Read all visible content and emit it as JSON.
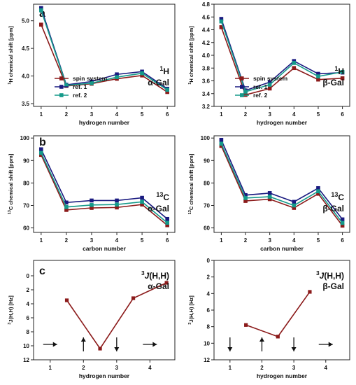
{
  "chart_data": [
    {
      "id": "a-alpha",
      "type": "line",
      "panel_label": "a",
      "xlabel": "hydrogen number",
      "ylabel": "1H chemical shift [ppm]",
      "ylim": [
        5.3,
        3.45
      ],
      "inverted": true,
      "yticks": [
        "3.5",
        "4.0",
        "4.5",
        "5.0"
      ],
      "xticks": [
        "1",
        "2",
        "3",
        "4",
        "5",
        "6"
      ],
      "x": [
        1,
        2,
        3,
        4,
        5,
        6
      ],
      "nucleus": "1H",
      "sugar": "α-Gal",
      "legend_location": "lower-left",
      "series": [
        {
          "name": "spin system",
          "color": "#8b1a1a",
          "values": [
            4.93,
            3.82,
            3.86,
            3.95,
            4.01,
            3.71
          ]
        },
        {
          "name": "ref. 1",
          "color": "#1a1a80",
          "values": [
            5.23,
            3.84,
            3.9,
            4.03,
            4.08,
            3.77
          ]
        },
        {
          "name": "ref. 2",
          "color": "#159a8a",
          "values": [
            5.19,
            3.83,
            3.87,
            3.98,
            4.05,
            3.75
          ]
        }
      ]
    },
    {
      "id": "a-beta",
      "type": "line",
      "xlabel": "hydrogen number",
      "ylabel": "1H chemical shift [ppm]",
      "ylim": [
        4.8,
        3.2
      ],
      "inverted": true,
      "yticks": [
        "3.2",
        "3.4",
        "3.6",
        "3.8",
        "4.0",
        "4.2",
        "4.4",
        "4.6",
        "4.8"
      ],
      "xticks": [
        "1",
        "2",
        "3",
        "4",
        "5",
        "6"
      ],
      "x": [
        1,
        2,
        3,
        4,
        5,
        6
      ],
      "nucleus": "1H",
      "sugar": "β-Gal",
      "legend_location": "lower-left",
      "series": [
        {
          "name": "spin system",
          "color": "#8b1a1a",
          "values": [
            4.44,
            3.38,
            3.48,
            3.8,
            3.62,
            3.64
          ]
        },
        {
          "name": "ref. 1",
          "color": "#1a1a80",
          "values": [
            4.57,
            3.45,
            3.58,
            3.91,
            3.71,
            3.73
          ]
        },
        {
          "name": "ref. 2",
          "color": "#159a8a",
          "values": [
            4.53,
            3.43,
            3.54,
            3.88,
            3.67,
            3.74
          ]
        }
      ]
    },
    {
      "id": "b-alpha",
      "type": "line",
      "panel_label": "b",
      "xlabel": "carbon number",
      "ylabel": "13C chemical shift [ppm]",
      "ylim": [
        101,
        58
      ],
      "inverted": true,
      "yticks": [
        "60",
        "70",
        "80",
        "90",
        "100"
      ],
      "xticks": [
        "1",
        "2",
        "3",
        "4",
        "5",
        "6"
      ],
      "x": [
        1,
        2,
        3,
        4,
        5,
        6
      ],
      "nucleus": "13C",
      "sugar": "α-Gal",
      "series": [
        {
          "name": "spin system",
          "color": "#8b1a1a",
          "values": [
            92.5,
            68.0,
            68.9,
            69.1,
            70.4,
            61.2
          ]
        },
        {
          "name": "ref. 1",
          "color": "#1a1a80",
          "values": [
            95.0,
            71.3,
            72.2,
            72.2,
            73.4,
            64.0
          ]
        },
        {
          "name": "ref. 2",
          "color": "#159a8a",
          "values": [
            93.4,
            69.3,
            70.2,
            70.4,
            71.6,
            62.3
          ]
        }
      ]
    },
    {
      "id": "b-beta",
      "type": "line",
      "xlabel": "carbon number",
      "ylabel": "13C chemical shift [ppm]",
      "ylim": [
        101,
        58
      ],
      "inverted": true,
      "yticks": [
        "60",
        "70",
        "80",
        "90",
        "100"
      ],
      "xticks": [
        "1",
        "2",
        "3",
        "4",
        "5",
        "6"
      ],
      "x": [
        1,
        2,
        3,
        4,
        5,
        6
      ],
      "nucleus": "13C",
      "sugar": "β-Gal",
      "series": [
        {
          "name": "spin system",
          "color": "#8b1a1a",
          "values": [
            96.5,
            72.0,
            72.8,
            68.9,
            75.2,
            61.0
          ]
        },
        {
          "name": "ref. 1",
          "color": "#1a1a80",
          "values": [
            99.2,
            74.6,
            75.5,
            71.6,
            77.7,
            63.8
          ]
        },
        {
          "name": "ref. 2",
          "color": "#159a8a",
          "values": [
            97.5,
            73.3,
            73.9,
            70.0,
            76.3,
            62.2
          ]
        }
      ]
    },
    {
      "id": "c-alpha",
      "type": "line",
      "panel_label": "c",
      "xlabel": "hydrogen number",
      "ylabel": "3J(H,H) [Hz]",
      "ylim": [
        -2.2,
        12
      ],
      "yticks": [
        "0",
        "2",
        "4",
        "6",
        "8",
        "10",
        "12"
      ],
      "xlim": [
        0.5,
        4.75
      ],
      "xticks": [
        "1",
        "2",
        "3",
        "4"
      ],
      "title": "3J(H,H)",
      "sugar": "α-Gal",
      "x": [
        1.5,
        2.5,
        3.5,
        4.5
      ],
      "values": [
        3.5,
        10.4,
        3.2,
        1.0
      ],
      "color": "#8b1a1a",
      "orientation_arrows": [
        "right",
        "up",
        "down",
        "right"
      ]
    },
    {
      "id": "c-beta",
      "type": "line",
      "xlabel": "hydrogen number",
      "ylabel": "3J(H,H) [Hz]",
      "ylim": [
        0,
        12
      ],
      "yticks": [
        "0",
        "2",
        "4",
        "6",
        "8",
        "10",
        "12"
      ],
      "xlim": [
        0.5,
        4.75
      ],
      "xticks": [
        "1",
        "2",
        "3",
        "4"
      ],
      "title": "3J(H,H)",
      "sugar": "β-Gal",
      "x": [
        1.5,
        2.5,
        3.5
      ],
      "values": [
        7.8,
        9.2,
        3.8
      ],
      "color": "#8b1a1a",
      "orientation_arrows": [
        "down",
        "up",
        "down",
        "right"
      ]
    }
  ]
}
